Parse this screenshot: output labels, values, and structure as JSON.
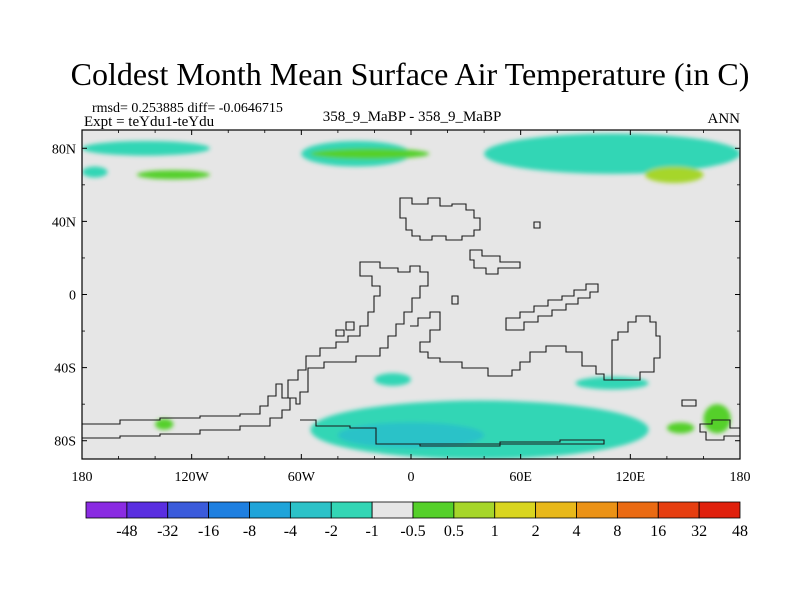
{
  "chart_data": {
    "type": "heatmap",
    "title": "Coldest Month Mean Surface Air Temperature (in C)",
    "subtitle_left_line1": "rmsd= 0.253885  diff= -0.0646715",
    "subtitle_left_line2": "Expt = teYdu1-teYdu",
    "subtitle_center": "358_9_MaBP - 358_9_MaBP",
    "subtitle_right": "ANN",
    "xlim": [
      -180,
      180
    ],
    "ylim": [
      -90,
      90
    ],
    "x_ticks": [
      {
        "value": -180,
        "label": "180"
      },
      {
        "value": -120,
        "label": "120W"
      },
      {
        "value": -60,
        "label": "60W"
      },
      {
        "value": 0,
        "label": "0"
      },
      {
        "value": 60,
        "label": "60E"
      },
      {
        "value": 120,
        "label": "120E"
      },
      {
        "value": 180,
        "label": "180"
      }
    ],
    "y_ticks": [
      {
        "value": 80,
        "label": "80N"
      },
      {
        "value": 40,
        "label": "40N"
      },
      {
        "value": 0,
        "label": "0"
      },
      {
        "value": -40,
        "label": "40S"
      },
      {
        "value": -80,
        "label": "80S"
      }
    ],
    "background_color": "#e6e6e6",
    "colorbar": {
      "colors": [
        "#8a2be2",
        "#5a2ee0",
        "#3b5bdb",
        "#1e7fe0",
        "#1fa4d9",
        "#2cc2c8",
        "#33d6b5",
        "#e6e6e6",
        "#55d02a",
        "#a6d62a",
        "#d9d51f",
        "#e8b81a",
        "#eb9216",
        "#ea6a12",
        "#e63e10",
        "#e0200c"
      ],
      "labels": [
        "-48",
        "-32",
        "-16",
        "-8",
        "-4",
        "-2",
        "-1",
        "-0.5",
        "0.5",
        "1",
        "2",
        "4",
        "8",
        "16",
        "32",
        "48"
      ]
    },
    "anomaly_regions": [
      {
        "bin": "-1 to -0.5",
        "color": "#33d6b5",
        "lon": [
          -180,
          -166
        ],
        "lat": [
          64,
          70
        ]
      },
      {
        "bin": "-1 to -0.5",
        "color": "#33d6b5",
        "lon": [
          -180,
          -110
        ],
        "lat": [
          76,
          84
        ]
      },
      {
        "bin": "-1 to -0.5",
        "color": "#33d6b5",
        "lon": [
          -60,
          0
        ],
        "lat": [
          70,
          84
        ]
      },
      {
        "bin": "-1 to -0.5",
        "color": "#33d6b5",
        "lon": [
          40,
          180
        ],
        "lat": [
          66,
          88
        ]
      },
      {
        "bin": "0.5 to 1",
        "color": "#55d02a",
        "lon": [
          -55,
          10
        ],
        "lat": [
          74,
          80
        ]
      },
      {
        "bin": "0.5 to 1",
        "color": "#55d02a",
        "lon": [
          -150,
          -110
        ],
        "lat": [
          63,
          68
        ]
      },
      {
        "bin": "1 to 2",
        "color": "#a6d62a",
        "lon": [
          128,
          160
        ],
        "lat": [
          61,
          70
        ]
      },
      {
        "bin": "-1 to -0.5",
        "color": "#33d6b5",
        "lon": [
          -20,
          0
        ],
        "lat": [
          -50,
          -43
        ]
      },
      {
        "bin": "-1 to -0.5",
        "color": "#33d6b5",
        "lon": [
          -55,
          130
        ],
        "lat": [
          -90,
          -58
        ]
      },
      {
        "bin": "-1 to -0.5",
        "color": "#33d6b5",
        "lon": [
          90,
          130
        ],
        "lat": [
          -52,
          -45
        ]
      },
      {
        "bin": "-2 to -1",
        "color": "#2cc2c8",
        "lon": [
          -40,
          40
        ],
        "lat": [
          -84,
          -70
        ]
      },
      {
        "bin": "0.5 to 1",
        "color": "#55d02a",
        "lon": [
          -140,
          -130
        ],
        "lat": [
          -74,
          -68
        ]
      },
      {
        "bin": "0.5 to 1",
        "color": "#55d02a",
        "lon": [
          160,
          175
        ],
        "lat": [
          -76,
          -60
        ]
      },
      {
        "bin": "0.5 to 1",
        "color": "#55d02a",
        "lon": [
          140,
          155
        ],
        "lat": [
          -76,
          -70
        ]
      }
    ]
  }
}
